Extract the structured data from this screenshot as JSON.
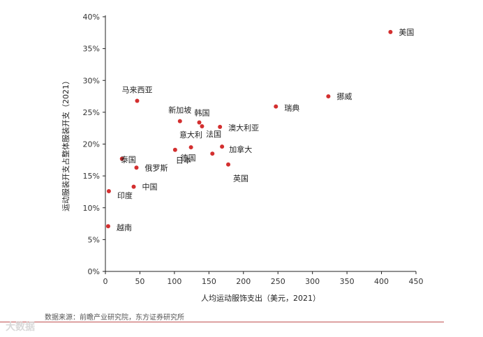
{
  "chart_data": {
    "type": "scatter",
    "xlabel": "人均运动服饰支出（美元，2021）",
    "ylabel": "运动服装开支占整体服装开支（2021）",
    "xlim": [
      0,
      450
    ],
    "ylim": [
      0,
      40
    ],
    "xticks": [
      "0",
      "50",
      "100",
      "150",
      "200",
      "250",
      "300",
      "350",
      "400",
      "450"
    ],
    "yticks": [
      "0%",
      "5%",
      "10%",
      "15%",
      "20%",
      "25%",
      "30%",
      "35%",
      "40%"
    ],
    "point_color": "#d32f2f",
    "points": [
      {
        "label": "美国",
        "x": 413,
        "y": 37.6
      },
      {
        "label": "挪威",
        "x": 323,
        "y": 27.5
      },
      {
        "label": "瑞典",
        "x": 247,
        "y": 25.9
      },
      {
        "label": "马来西亚",
        "x": 46,
        "y": 26.8
      },
      {
        "label": "新加坡",
        "x": 108,
        "y": 23.6
      },
      {
        "label": "韩国",
        "x": 136,
        "y": 23.4
      },
      {
        "label": "澳大利亚",
        "x": 166,
        "y": 22.7
      },
      {
        "label": "意大利",
        "x": 140,
        "y": 22.8
      },
      {
        "label": "法国",
        "x": 169,
        "y": 19.6
      },
      {
        "label": "加拿大",
        "x": 155,
        "y": 18.5
      },
      {
        "label": "日本",
        "x": 101,
        "y": 19.1
      },
      {
        "label": "德国",
        "x": 124,
        "y": 19.5
      },
      {
        "label": "英国",
        "x": 178,
        "y": 16.8
      },
      {
        "label": "泰国",
        "x": 24,
        "y": 17.7
      },
      {
        "label": "俄罗斯",
        "x": 45,
        "y": 16.3
      },
      {
        "label": "中国",
        "x": 41,
        "y": 13.3
      },
      {
        "label": "印度",
        "x": 5,
        "y": 12.6
      },
      {
        "label": "越南",
        "x": 4,
        "y": 7.1
      }
    ]
  },
  "source_text": "数据来源：前瞻产业研究院，东方证券研究所",
  "watermark_text": "大数据"
}
